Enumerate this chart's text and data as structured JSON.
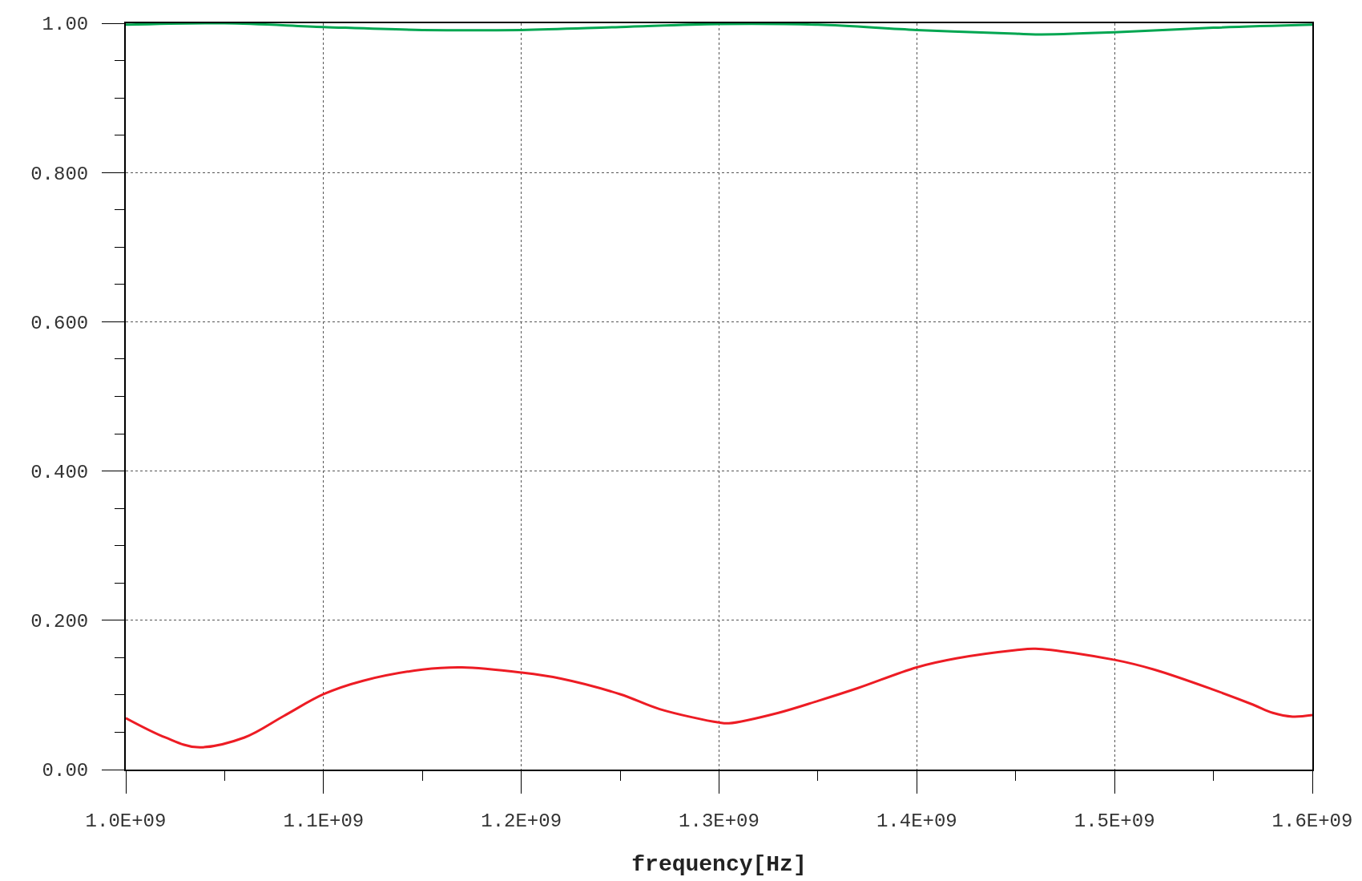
{
  "chart_data": {
    "type": "line",
    "xlabel": "frequency[Hz]",
    "xlim": [
      1000000000,
      1600000000
    ],
    "xticks": [
      {
        "value": 1000000000,
        "label": "1.0E+09"
      },
      {
        "value": 1100000000,
        "label": "1.1E+09"
      },
      {
        "value": 1200000000,
        "label": "1.2E+09"
      },
      {
        "value": 1300000000,
        "label": "1.3E+09"
      },
      {
        "value": 1400000000,
        "label": "1.4E+09"
      },
      {
        "value": 1500000000,
        "label": "1.5E+09"
      },
      {
        "value": 1600000000,
        "label": "1.6E+09"
      }
    ],
    "ylim": [
      0,
      1
    ],
    "yticks": [
      {
        "value": 0,
        "label": "0.00"
      },
      {
        "value": 0.2,
        "label": "0.200"
      },
      {
        "value": 0.4,
        "label": "0.400"
      },
      {
        "value": 0.6,
        "label": "0.600"
      },
      {
        "value": 0.8,
        "label": "0.800"
      },
      {
        "value": 1,
        "label": "1.00"
      }
    ],
    "grid": true,
    "marker": "none",
    "line_style": "solid",
    "series": [
      {
        "color": "#ed1c24",
        "x": [
          1000000000,
          1020000000,
          1036000000,
          1060000000,
          1080000000,
          1100000000,
          1120000000,
          1150000000,
          1170000000,
          1200000000,
          1220000000,
          1250000000,
          1270000000,
          1300000000,
          1305000000,
          1330000000,
          1350000000,
          1370000000,
          1400000000,
          1420000000,
          1450000000,
          1460000000,
          1500000000,
          1520000000,
          1550000000,
          1570000000,
          1580000000,
          1590000000,
          1600000000
        ],
        "values": [
          0.069,
          0.043,
          0.03,
          0.043,
          0.072,
          0.101,
          0.119,
          0.134,
          0.137,
          0.13,
          0.122,
          0.101,
          0.081,
          0.063,
          0.062,
          0.076,
          0.092,
          0.109,
          0.137,
          0.149,
          0.16,
          0.162,
          0.147,
          0.134,
          0.107,
          0.087,
          0.076,
          0.071,
          0.073
        ]
      },
      {
        "color": "#00a651",
        "x": [
          1000000000,
          1050000000,
          1100000000,
          1150000000,
          1200000000,
          1250000000,
          1300000000,
          1350000000,
          1400000000,
          1450000000,
          1460000000,
          1500000000,
          1550000000,
          1600000000
        ],
        "values": [
          0.998,
          1.0,
          0.995,
          0.991,
          0.991,
          0.995,
          0.999,
          0.998,
          0.991,
          0.986,
          0.985,
          0.988,
          0.994,
          0.998
        ]
      }
    ]
  }
}
